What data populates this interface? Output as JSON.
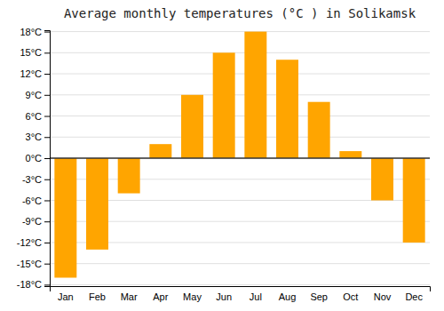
{
  "chart_data": {
    "type": "bar",
    "title": "Average monthly temperatures (°C ) in Solikamsk",
    "categories": [
      "Jan",
      "Feb",
      "Mar",
      "Apr",
      "May",
      "Jun",
      "Jul",
      "Aug",
      "Sep",
      "Oct",
      "Nov",
      "Dec"
    ],
    "values": [
      -17,
      -13,
      -5,
      2,
      9,
      15,
      18,
      14,
      8,
      1,
      -6,
      -12
    ],
    "color": "#FFA500",
    "ylim": [
      -18.2,
      18.2
    ],
    "yticks": [
      {
        "value": -18,
        "label": "-18°C"
      },
      {
        "value": -15,
        "label": "-15°C"
      },
      {
        "value": -12,
        "label": "-12°C"
      },
      {
        "value": -9,
        "label": "-9°C"
      },
      {
        "value": -6,
        "label": "-6°C"
      },
      {
        "value": -3,
        "label": "-3°C"
      },
      {
        "value": 0,
        "label": "0°C"
      },
      {
        "value": 3,
        "label": "3°C"
      },
      {
        "value": 6,
        "label": "6°C"
      },
      {
        "value": 9,
        "label": "9°C"
      },
      {
        "value": 12,
        "label": "12°C"
      },
      {
        "value": 15,
        "label": "15°C"
      },
      {
        "value": 18,
        "label": "18°C"
      }
    ],
    "grid": true
  }
}
